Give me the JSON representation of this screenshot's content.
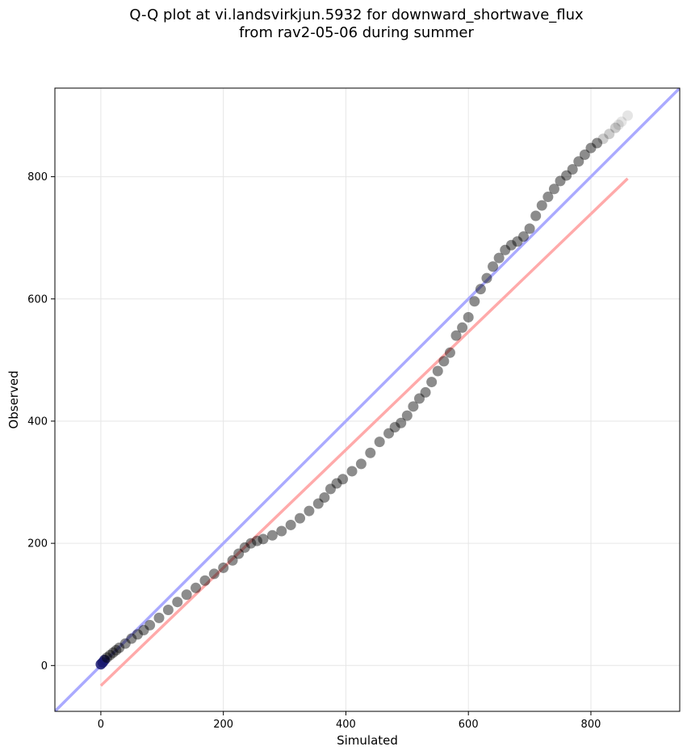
{
  "chart_data": {
    "type": "scatter",
    "title_line1": "Q-Q plot at vi.landsvirkjun.5932 for downward_shortwave_flux",
    "title_line2": "from rav2-05-06 during summer",
    "xlabel": "Simulated",
    "ylabel": "Observed",
    "xlim": [
      -75,
      945
    ],
    "ylim": [
      -75,
      945
    ],
    "xticks": [
      0,
      200,
      400,
      600,
      800
    ],
    "yticks": [
      0,
      200,
      400,
      600,
      800
    ],
    "grid": true,
    "colors": {
      "points": "#000000",
      "one_to_one_line": "#aaaaff",
      "fit_line": "#ffaaaa",
      "low_end_points": "#1a1a70",
      "fit_overlap": "#8b0000"
    },
    "one_to_one_line": {
      "x": [
        -75,
        945
      ],
      "y": [
        -75,
        945
      ]
    },
    "fit_line": {
      "x": [
        0,
        860
      ],
      "y": [
        -33,
        797
      ]
    },
    "qq_points": {
      "x": [
        0,
        3,
        6,
        10,
        15,
        20,
        25,
        30,
        40,
        50,
        60,
        70,
        80,
        95,
        110,
        125,
        140,
        155,
        170,
        185,
        200,
        215,
        225,
        235,
        245,
        255,
        265,
        280,
        295,
        310,
        325,
        340,
        355,
        365,
        375,
        385,
        395,
        410,
        425,
        440,
        455,
        470,
        480,
        490,
        500,
        510,
        520,
        530,
        540,
        550,
        560,
        570,
        580,
        590,
        600,
        610,
        620,
        630,
        640,
        650,
        660,
        670,
        680,
        690,
        700,
        710,
        720,
        730,
        740,
        750,
        760,
        770,
        780,
        790,
        800,
        810,
        820,
        830,
        840,
        845,
        850,
        860
      ],
      "y": [
        2,
        5,
        9,
        13,
        17,
        21,
        25,
        29,
        36,
        44,
        51,
        58,
        66,
        78,
        91,
        104,
        116,
        127,
        139,
        150,
        160,
        172,
        183,
        193,
        200,
        204,
        207,
        213,
        220,
        230,
        241,
        253,
        265,
        275,
        289,
        298,
        305,
        318,
        330,
        348,
        366,
        380,
        390,
        397,
        409,
        424,
        437,
        447,
        464,
        482,
        498,
        512,
        540,
        553,
        570,
        596,
        616,
        634,
        653,
        667,
        680,
        688,
        694,
        702,
        715,
        736,
        753,
        767,
        780,
        793,
        802,
        812,
        825,
        836,
        847,
        855,
        862,
        870,
        880,
        885,
        890,
        900
      ]
    }
  }
}
